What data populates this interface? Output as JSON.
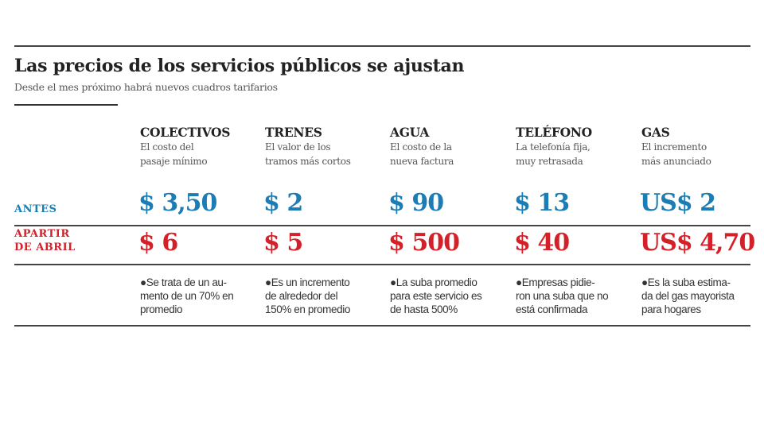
{
  "title": "Las precios de los servicios públicos se ajustan",
  "subtitle": "Desde el mes próximo habrá nuevos cuadros tarifarios",
  "colors": {
    "antes": "#1b7db3",
    "despues": "#d42029"
  },
  "rows": {
    "antes": "ANTES",
    "despues_1": "APARTIR",
    "despues_2": "DE ABRIL"
  },
  "columns": [
    {
      "name": "COLECTIVOS",
      "desc1": "El costo del",
      "desc2": "pasaje mínimo",
      "antes": "$ 3,50",
      "despues": "$ 6",
      "note1": "Se trata de un au-",
      "note2": "mento de un 70% en",
      "note3": "promedio"
    },
    {
      "name": "TRENES",
      "desc1": "El valor de los",
      "desc2": "tramos más cortos",
      "antes": "$ 2",
      "despues": "$ 5",
      "note1": "Es un incremento",
      "note2": "de alrededor del",
      "note3": "150% en promedio"
    },
    {
      "name": "AGUA",
      "desc1": "El costo de la",
      "desc2": "nueva factura",
      "antes": "$ 90",
      "despues": "$ 500",
      "note1": "La suba promedio",
      "note2": "para este servicio es",
      "note3": "de hasta 500%"
    },
    {
      "name": "TELÉFONO",
      "desc1": "La telefonía fija,",
      "desc2": "muy retrasada",
      "antes": "$ 13",
      "despues": "$ 40",
      "note1": "Empresas pidie-",
      "note2": "ron una suba  que no",
      "note3": "está confirmada"
    },
    {
      "name": "GAS",
      "desc1": "El incremento",
      "desc2": "más anunciado",
      "antes": "US$ 2",
      "despues": "US$ 4,70",
      "note1": "Es la suba estima-",
      "note2": "da del gas mayorista",
      "note3": "para hogares"
    }
  ]
}
